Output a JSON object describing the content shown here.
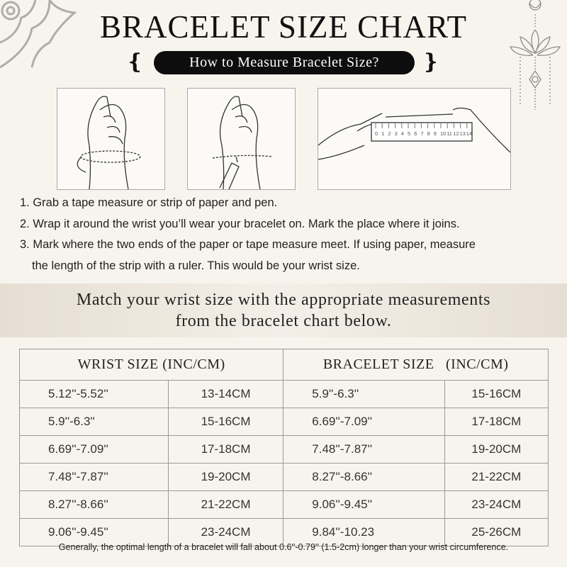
{
  "title": "BRACELET SIZE CHART",
  "subtitle": "How to Measure Bracelet Size?",
  "ruler_numbers": [
    "0",
    "1",
    "2",
    "3",
    "4",
    "5",
    "6",
    "7",
    "8",
    "9",
    "10",
    "11",
    "12",
    "13",
    "14"
  ],
  "steps": [
    "1. Grab a tape measure or strip of paper and pen.",
    "2. Wrap it around the wrist you’ll wear your bracelet on. Mark the place where it joins.",
    "3. Mark where the two ends of the paper or tape measure meet. If using paper, measure",
    "the length of the strip with a ruler. This would be your wrist size."
  ],
  "band": {
    "line1": "Match your wrist size with the appropriate measurements",
    "line2": "from the bracelet chart below."
  },
  "table": {
    "headers": [
      "WRIST SIZE (INC/CM)",
      "BRACELET SIZE   (INC/CM)"
    ],
    "rows": [
      [
        "5.12''-5.52''",
        "13-14CM",
        "5.9''-6.3''",
        "15-16CM"
      ],
      [
        "5.9''-6.3''",
        "15-16CM",
        "6.69''-7.09''",
        "17-18CM"
      ],
      [
        "6.69''-7.09''",
        "17-18CM",
        "7.48''-7.87''",
        "19-20CM"
      ],
      [
        "7.48''-7.87''",
        "19-20CM",
        "8.27''-8.66''",
        "21-22CM"
      ],
      [
        "8.27''-8.66''",
        "21-22CM",
        "9.06''-9.45''",
        "23-24CM"
      ],
      [
        "9.06''-9.45''",
        "23-24CM",
        "9.84''-10.23",
        "25-26CM"
      ]
    ]
  },
  "note": "Generally, the optimal length of a bracelet will fall about 0.6''-0.79'' (1.5-2cm) longer than your wrist circumference.",
  "colors": {
    "background": "#f7f4ee",
    "pill": "#0d0d0d",
    "ornament": "#a9a6a1"
  }
}
